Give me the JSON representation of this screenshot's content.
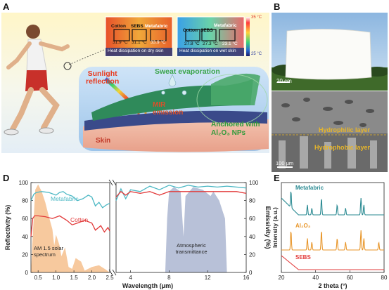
{
  "panels": {
    "A": {
      "label": "A",
      "thermal_dry": {
        "samples": [
          "Cotton",
          "SEBS",
          "Metafabric"
        ],
        "temps": [
          "31.9 °C",
          "31.1 °C",
          "33.9 °C"
        ],
        "caption": "Heat dissipation on dry skin"
      },
      "thermal_wet": {
        "samples": [
          "Cotton",
          "SEBS",
          "Metafabric"
        ],
        "temps": [
          "27.8 °C",
          "27.3 °C",
          "23.1 °C"
        ],
        "caption": "Heat dissipation on wet skin"
      },
      "scale_max": "35 °C",
      "scale_min": "25 °C",
      "labels": {
        "sunlight": "Sunlight\nreflection",
        "sweat": "Sweat evaporation",
        "mir": "MIR\nemission",
        "anchored": "Anchored with\nAl₂O₃ NPs",
        "skin": "Skin"
      },
      "colors": {
        "sunlight": "#e83a1e",
        "sweat": "#3aa44a",
        "mir": "#d9502a",
        "anchored": "#2f9a3a",
        "skin_label": "#c23a2a"
      }
    },
    "B": {
      "label": "B",
      "scalebar": "20 cm"
    },
    "C": {
      "label": "C",
      "layer_top": "Hydrophilic layer",
      "layer_bottom": "Hydrophobic layer",
      "scalebar": "100 μm",
      "layer_color": "#e8b629"
    },
    "D": {
      "label": "D"
    },
    "E": {
      "label": "E"
    }
  },
  "chart_data": [
    {
      "panel": "D",
      "type": "line",
      "xlabel": "Wavelength  (μm)",
      "ylabel_left": "Reflectivity (%)",
      "ylabel_right": "Emissivity (%)",
      "ylim": [
        0,
        100
      ],
      "x_left_range": [
        0.3,
        2.5
      ],
      "x_right_range": [
        2.5,
        16
      ],
      "x_ticks_left": [
        "0.5",
        "1.0",
        "1.5",
        "2.0",
        "2.5"
      ],
      "x_ticks_right": [
        "4",
        "8",
        "12",
        "16"
      ],
      "y_ticks": [
        "0",
        "20",
        "40",
        "60",
        "80",
        "100"
      ],
      "series": [
        {
          "name": "Metafabric",
          "color": "#4cb8c4",
          "reflect_x": [
            0.3,
            0.38,
            0.45,
            0.6,
            0.8,
            1.0,
            1.1,
            1.2,
            1.3,
            1.45,
            1.6,
            1.75,
            1.9,
            2.0,
            2.1,
            2.2,
            2.3,
            2.4,
            2.5
          ],
          "reflect_y": [
            80,
            87,
            89,
            90,
            89,
            86,
            89,
            90,
            87,
            85,
            80,
            82,
            86,
            84,
            74,
            78,
            72,
            75,
            77
          ],
          "emit_x": [
            2.5,
            3.0,
            3.5,
            4.0,
            5.0,
            6.0,
            7.0,
            8.0,
            9.0,
            10.0,
            11.0,
            12.0,
            13.0,
            14.0,
            15.0,
            16.0
          ],
          "emit_y": [
            80,
            93,
            82,
            92,
            90,
            96,
            92,
            97,
            94,
            97,
            95,
            96,
            95,
            96,
            95,
            94
          ]
        },
        {
          "name": "Cotton",
          "color": "#e23a3a",
          "reflect_x": [
            0.3,
            0.35,
            0.4,
            0.5,
            0.7,
            0.9,
            1.1,
            1.3,
            1.45,
            1.6,
            1.8,
            2.0,
            2.1,
            2.25,
            2.35,
            2.45,
            2.5
          ],
          "reflect_y": [
            40,
            60,
            63,
            63,
            62,
            60,
            63,
            58,
            53,
            55,
            58,
            55,
            47,
            52,
            45,
            50,
            46
          ],
          "emit_x": [
            2.5,
            3.0,
            3.5,
            4.0,
            5.0,
            6.0,
            7.0,
            8.0,
            9.0,
            10.0,
            11.0,
            12.0,
            13.0,
            14.0,
            15.0,
            16.0
          ],
          "emit_y": [
            84,
            90,
            86,
            90,
            88,
            90,
            86,
            90,
            90,
            90,
            90,
            90,
            90,
            90,
            90,
            88
          ]
        }
      ],
      "annotations": [
        "AM 1.5 solar\nspectrum",
        "Atmospheric\ntransmittance"
      ]
    },
    {
      "panel": "E",
      "type": "line",
      "xlabel": "2 theta (°)",
      "ylabel": "Intensity (a.u.)",
      "xlim": [
        20,
        80
      ],
      "x_ticks": [
        "20",
        "40",
        "60",
        "80"
      ],
      "series": [
        {
          "name": "Metafabric",
          "color": "#2a8a92",
          "peaks": [
            25.6,
            35.2,
            37.8,
            43.4,
            52.6,
            57.5,
            66.5,
            68.2
          ]
        },
        {
          "name": "Al₂O₃",
          "color": "#e8962a",
          "peaks": [
            25.6,
            35.2,
            37.8,
            43.4,
            52.6,
            57.5,
            66.5,
            68.2,
            76.9
          ]
        },
        {
          "name": "SEBS",
          "color": "#e23a3a",
          "peaks": []
        }
      ]
    }
  ]
}
